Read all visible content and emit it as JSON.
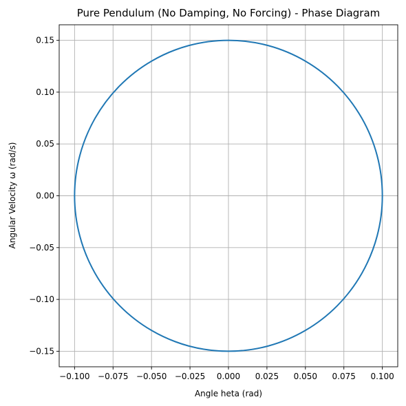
{
  "chart_data": {
    "type": "line",
    "title": "Pure Pendulum (No Damping, No Forcing) - Phase Diagram",
    "xlabel": "Angle heta (rad)",
    "ylabel": "Angular Velocity ω (rad/s)",
    "xlim": [
      -0.11,
      0.11
    ],
    "ylim": [
      -0.165,
      0.165
    ],
    "xticks": [
      -0.1,
      -0.075,
      -0.05,
      -0.025,
      0.0,
      0.025,
      0.05,
      0.075,
      0.1
    ],
    "xtick_labels": [
      "−0.100",
      "−0.075",
      "−0.050",
      "−0.025",
      "0.000",
      "0.025",
      "0.050",
      "0.075",
      "0.100"
    ],
    "yticks": [
      -0.15,
      -0.1,
      -0.05,
      0.0,
      0.05,
      0.1,
      0.15
    ],
    "ytick_labels": [
      "−0.15",
      "−0.10",
      "−0.05",
      "0.00",
      "0.05",
      "0.10",
      "0.15"
    ],
    "grid": true,
    "series": [
      {
        "color": "#1f77b4",
        "x": [
          0.1,
          0.0966,
          0.0866,
          0.0707,
          0.05,
          0.0259,
          0.0,
          -0.0259,
          -0.05,
          -0.0707,
          -0.0866,
          -0.0966,
          -0.1,
          -0.0966,
          -0.0866,
          -0.0707,
          -0.05,
          -0.0259,
          0.0,
          0.0259,
          0.05,
          0.0707,
          0.0866,
          0.0966,
          0.1
        ],
        "y": [
          0.0,
          -0.0388,
          -0.075,
          -0.1061,
          -0.1299,
          -0.1449,
          -0.15,
          -0.1449,
          -0.1299,
          -0.1061,
          -0.075,
          -0.0388,
          0.0,
          0.0388,
          0.075,
          0.1061,
          0.1299,
          0.1449,
          0.15,
          0.1449,
          0.1299,
          0.1061,
          0.075,
          0.0388,
          0.0
        ]
      }
    ]
  }
}
